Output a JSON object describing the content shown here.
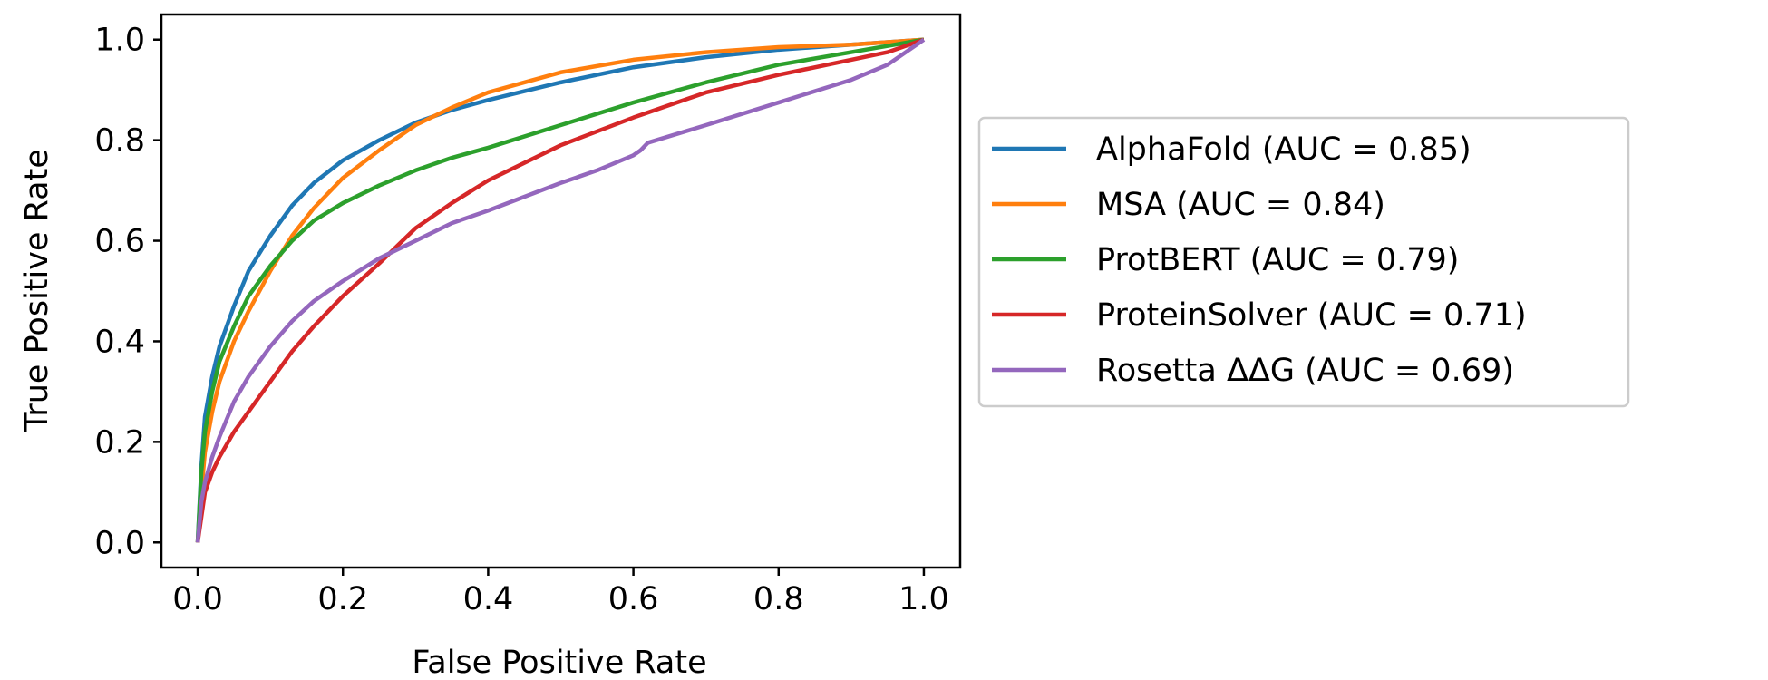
{
  "chart_data": {
    "type": "line",
    "title": "",
    "xlabel": "False Positive Rate",
    "ylabel": "True Positive Rate",
    "xlim": [
      -0.05,
      1.05
    ],
    "ylim": [
      -0.05,
      1.05
    ],
    "xticks": [
      "0.0",
      "0.2",
      "0.4",
      "0.6",
      "0.8",
      "1.0"
    ],
    "yticks": [
      "0.0",
      "0.2",
      "0.4",
      "0.6",
      "0.8",
      "1.0"
    ],
    "grid": false,
    "legend_position": "outside-right",
    "series": [
      {
        "name": "AlphaFold (AUC = 0.85)",
        "color": "#1f77b4",
        "x": [
          0,
          0.005,
          0.01,
          0.02,
          0.03,
          0.05,
          0.07,
          0.1,
          0.13,
          0.16,
          0.2,
          0.25,
          0.3,
          0.35,
          0.4,
          0.5,
          0.6,
          0.7,
          0.8,
          0.9,
          1.0
        ],
        "y": [
          0,
          0.15,
          0.25,
          0.33,
          0.39,
          0.47,
          0.54,
          0.61,
          0.67,
          0.715,
          0.76,
          0.8,
          0.835,
          0.86,
          0.88,
          0.915,
          0.945,
          0.965,
          0.98,
          0.99,
          1.0
        ]
      },
      {
        "name": "MSA (AUC = 0.84)",
        "color": "#ff7f0e",
        "x": [
          0,
          0.005,
          0.01,
          0.02,
          0.03,
          0.05,
          0.07,
          0.1,
          0.13,
          0.16,
          0.2,
          0.25,
          0.3,
          0.35,
          0.4,
          0.5,
          0.6,
          0.7,
          0.8,
          0.9,
          1.0
        ],
        "y": [
          0,
          0.1,
          0.18,
          0.26,
          0.32,
          0.4,
          0.46,
          0.54,
          0.61,
          0.665,
          0.725,
          0.78,
          0.83,
          0.865,
          0.895,
          0.935,
          0.96,
          0.975,
          0.985,
          0.99,
          1.0
        ]
      },
      {
        "name": "ProtBERT (AUC = 0.79)",
        "color": "#2ca02c",
        "x": [
          0,
          0.005,
          0.01,
          0.02,
          0.03,
          0.05,
          0.07,
          0.1,
          0.13,
          0.16,
          0.2,
          0.25,
          0.3,
          0.35,
          0.4,
          0.5,
          0.6,
          0.7,
          0.8,
          0.9,
          1.0
        ],
        "y": [
          0,
          0.14,
          0.22,
          0.3,
          0.36,
          0.43,
          0.49,
          0.55,
          0.6,
          0.64,
          0.675,
          0.71,
          0.74,
          0.765,
          0.785,
          0.83,
          0.875,
          0.915,
          0.95,
          0.975,
          1.0
        ]
      },
      {
        "name": "ProteinSolver (AUC = 0.71)",
        "color": "#d62728",
        "x": [
          0,
          0.01,
          0.02,
          0.03,
          0.05,
          0.07,
          0.1,
          0.13,
          0.16,
          0.2,
          0.25,
          0.3,
          0.35,
          0.4,
          0.5,
          0.6,
          0.7,
          0.8,
          0.9,
          0.95,
          1.0
        ],
        "y": [
          0,
          0.1,
          0.14,
          0.17,
          0.22,
          0.26,
          0.32,
          0.38,
          0.43,
          0.49,
          0.555,
          0.625,
          0.675,
          0.72,
          0.79,
          0.845,
          0.895,
          0.93,
          0.96,
          0.975,
          1.0
        ]
      },
      {
        "name": "Rosetta ΔΔG (AUC = 0.69)",
        "color": "#9467bd",
        "x": [
          0,
          0.005,
          0.01,
          0.02,
          0.03,
          0.05,
          0.07,
          0.1,
          0.13,
          0.16,
          0.2,
          0.25,
          0.3,
          0.35,
          0.4,
          0.5,
          0.55,
          0.6,
          0.61,
          0.62,
          0.7,
          0.8,
          0.9,
          0.95,
          1.0
        ],
        "y": [
          0,
          0.08,
          0.12,
          0.17,
          0.21,
          0.28,
          0.33,
          0.39,
          0.44,
          0.48,
          0.52,
          0.565,
          0.6,
          0.635,
          0.66,
          0.715,
          0.74,
          0.77,
          0.78,
          0.795,
          0.83,
          0.875,
          0.92,
          0.95,
          1.0
        ]
      }
    ]
  }
}
